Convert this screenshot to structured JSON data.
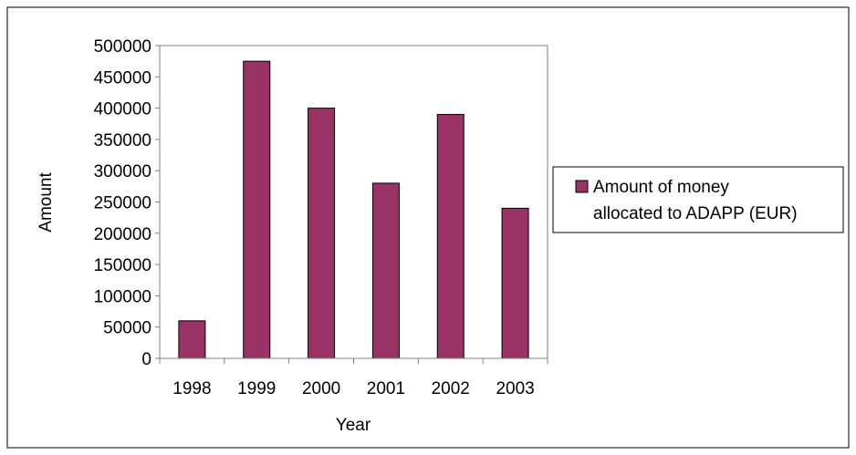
{
  "chart_data": {
    "type": "bar",
    "title": "",
    "xlabel": "Year",
    "ylabel": "Amount",
    "categories": [
      "1998",
      "1999",
      "2000",
      "2001",
      "2002",
      "2003"
    ],
    "series": [
      {
        "name": "Amount of money allocated to ADAPP (EUR)",
        "values": [
          60000,
          475000,
          400000,
          280000,
          390000,
          240000
        ],
        "color": "#993366"
      }
    ],
    "ylim": [
      0,
      500000
    ],
    "yticks": [
      "0",
      "50000",
      "100000",
      "150000",
      "200000",
      "250000",
      "300000",
      "350000",
      "400000",
      "450000",
      "500000"
    ],
    "grid": false,
    "legend_position": "right",
    "legend_lines": [
      "Amount of money",
      "allocated to ADAPP (EUR)"
    ],
    "colors": {
      "bar": "#993366",
      "axis": "#808080",
      "border": "#000000",
      "background": "#ffffff"
    }
  }
}
